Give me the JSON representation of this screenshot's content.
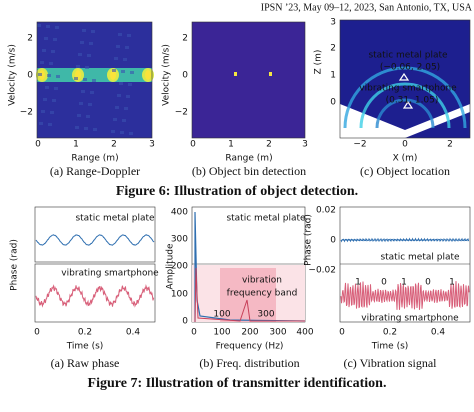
{
  "header": "IPSN ’23, May 09–12, 2023, San Antonio, TX, USA",
  "figure6": {
    "a": {
      "ylabel": "Velocity (m/s)",
      "yticks": [
        "2",
        "0",
        "−2"
      ],
      "xticks": [
        "0",
        "1",
        "2",
        "3"
      ],
      "xlabel": "Range (m)",
      "caption": "(a)  Range-Doppler"
    },
    "b": {
      "ylabel": "Velocity (m/s)",
      "yticks": [
        "2",
        "0",
        "−2"
      ],
      "xticks": [
        "0",
        "1",
        "2",
        "3"
      ],
      "xlabel": "Range (m)",
      "caption": "(b)  Object bin detection"
    },
    "c": {
      "ylabel": "Z (m)",
      "yticks": [
        "3",
        "2",
        "1",
        "0"
      ],
      "xticks": [
        "−2",
        "0",
        "2"
      ],
      "xlabel": "X (m)",
      "annotations": [
        "static metal plate",
        "(−0.06, 2.05)",
        "vibrating smartphone",
        "(0.31, 1.05)"
      ],
      "caption": "(c)  Object location"
    },
    "caption": "Figure 6: Illustration of object detection."
  },
  "figure7": {
    "a": {
      "ylabel": "Phase (rad)",
      "labels": [
        "static metal plate",
        "vibrating smartphone"
      ],
      "xticks": [
        "0",
        "0.2",
        "0.4"
      ],
      "xlabel": "Time (s)",
      "caption": "(a)  Raw phase"
    },
    "b": {
      "ylabel": "Amplitude",
      "yticks": [
        "400",
        "300",
        "200",
        "100",
        "0"
      ],
      "xticks": [
        "0",
        "100",
        "200",
        "300",
        "400"
      ],
      "xlabel": "Frequency (Hz)",
      "annotations": [
        "static metal plate",
        "vibration",
        "frequency band",
        "100",
        "300"
      ],
      "caption": "(b)  Freq. distribution"
    },
    "c": {
      "ylabel": "Phase (rad)",
      "yticks": [
        "0.02",
        "0",
        "−0.02"
      ],
      "labels": [
        "static metal plate",
        "vibrating smartphone"
      ],
      "bits": [
        "1",
        "0",
        "1",
        "0",
        "1"
      ],
      "xticks": [
        "0",
        "0.2",
        "0.4"
      ],
      "xlabel": "Time (s)",
      "caption": "(c)  Vibration signal"
    },
    "caption": "Figure 7: Illustration of transmitter identification."
  }
}
